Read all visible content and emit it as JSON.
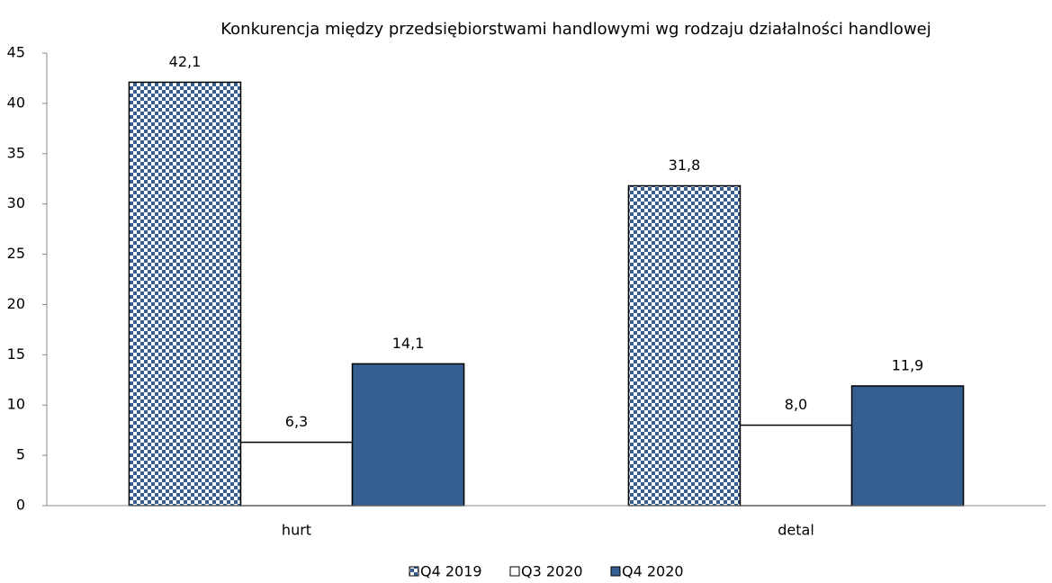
{
  "chart_data": {
    "type": "bar",
    "title": "Konkurencja między przedsiębiorstwami handlowymi wg rodzaju działalności handlowej",
    "categories": [
      "hurt",
      "detal"
    ],
    "series": [
      {
        "name": "Q4 2019",
        "color": "#365f91",
        "pattern": "checker",
        "values": [
          42.1,
          31.8
        ],
        "value_labels": [
          "42,1",
          "31,8"
        ]
      },
      {
        "name": "Q3 2020",
        "color": "#ffffff",
        "values": [
          6.3,
          8.0
        ],
        "value_labels": [
          "6,3",
          "8,0"
        ]
      },
      {
        "name": "Q4 2020",
        "color": "#365f91",
        "values": [
          14.1,
          11.9
        ],
        "value_labels": [
          "14,1",
          "11,9"
        ]
      }
    ],
    "ylim": [
      0,
      45
    ],
    "yticks": [
      0,
      5,
      10,
      15,
      20,
      25,
      30,
      35,
      40,
      45
    ],
    "grid": false,
    "legend": "bottom"
  }
}
